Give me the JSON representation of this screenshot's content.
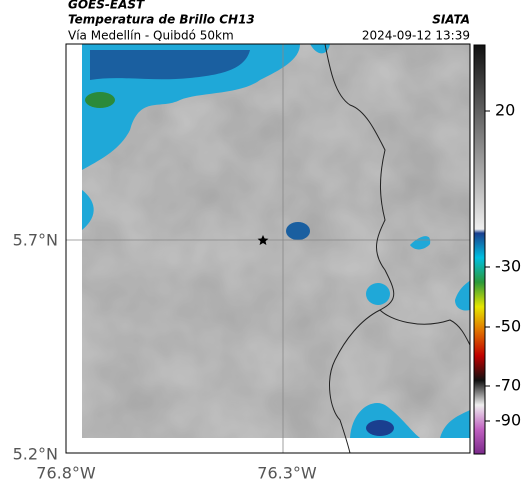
{
  "header": {
    "source": "GOES-EAST",
    "title": "Temperatura de Brillo CH13",
    "route": "Vía Medellín - Quibdó 50km",
    "agency": "SIATA",
    "datetime": "2024-09-12 13:39"
  },
  "axes": {
    "lat_labels": [
      "5.7°N",
      "5.2°N"
    ],
    "lon_labels": [
      "76.8°W",
      "76.3°W"
    ]
  },
  "colorbar": {
    "tick_labels": [
      "20",
      "-30",
      "-50",
      "-70",
      "-90"
    ]
  }
}
